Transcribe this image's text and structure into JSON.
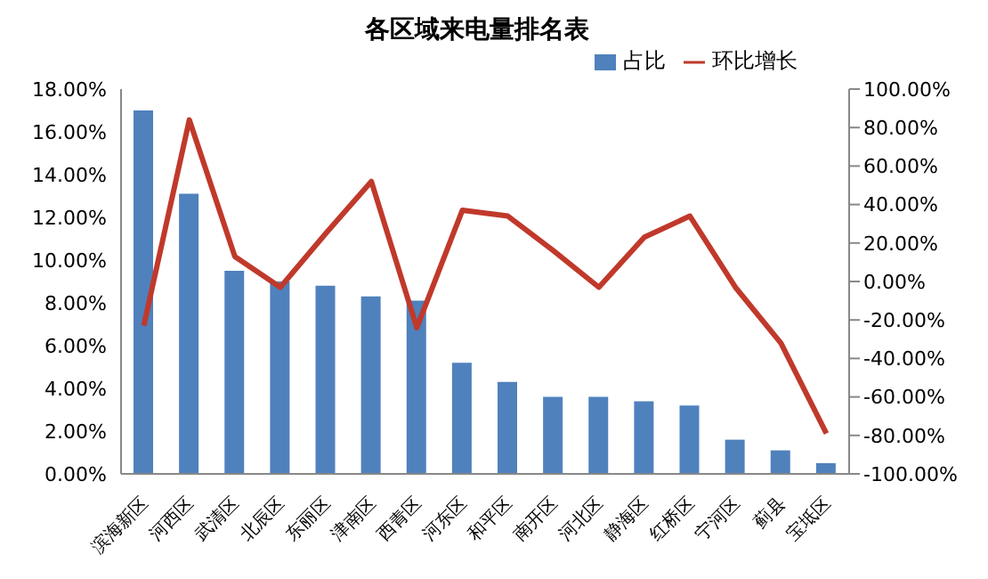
{
  "chart_data": {
    "type": "bar",
    "title": "各区域来电量排名表",
    "categories": [
      "滨海新区",
      "河西区",
      "武清区",
      "北辰区",
      "东丽区",
      "津南区",
      "西青区",
      "河东区",
      "和平区",
      "南开区",
      "河北区",
      "静海区",
      "红桥区",
      "宁河区",
      "蓟县",
      "宝坻区"
    ],
    "series": [
      {
        "name": "占比",
        "color": "#4f81bd",
        "values": [
          17.0,
          13.1,
          9.5,
          9.0,
          8.8,
          8.3,
          8.1,
          5.2,
          4.3,
          3.6,
          3.6,
          3.4,
          3.2,
          1.6,
          1.1,
          0.5
        ]
      },
      {
        "name": "环比增长",
        "type": "line",
        "axis": "y2",
        "color": "#c0392b",
        "values": [
          -23,
          84,
          13,
          -3,
          25,
          52,
          -24,
          37,
          34,
          16,
          -3,
          23,
          34,
          -3,
          -32,
          -79
        ]
      }
    ],
    "ylim": [
      0,
      18
    ],
    "yticks": [
      {
        "value": 0,
        "label": "0.00%"
      },
      {
        "value": 2,
        "label": "2.00%"
      },
      {
        "value": 4,
        "label": "4.00%"
      },
      {
        "value": 6,
        "label": "6.00%"
      },
      {
        "value": 8,
        "label": "8.00%"
      },
      {
        "value": 10,
        "label": "10.00%"
      },
      {
        "value": 12,
        "label": "12.00%"
      },
      {
        "value": 14,
        "label": "14.00%"
      },
      {
        "value": 16,
        "label": "16.00%"
      },
      {
        "value": 18,
        "label": "18.00%"
      }
    ],
    "y2lim": [
      -100,
      100
    ],
    "y2ticks": [
      {
        "value": -100,
        "label": "-100.00%"
      },
      {
        "value": -80,
        "label": "-80.00%"
      },
      {
        "value": -60,
        "label": "-60.00%"
      },
      {
        "value": -40,
        "label": "-40.00%"
      },
      {
        "value": -20,
        "label": "-20.00%"
      },
      {
        "value": 0,
        "label": "0.00%"
      },
      {
        "value": 20,
        "label": "20.00%"
      },
      {
        "value": 40,
        "label": "40.00%"
      },
      {
        "value": 60,
        "label": "60.00%"
      },
      {
        "value": 80,
        "label": "80.00%"
      },
      {
        "value": 100,
        "label": "100.00%"
      }
    ],
    "grid": false,
    "legend": "top right",
    "marker": "none"
  }
}
